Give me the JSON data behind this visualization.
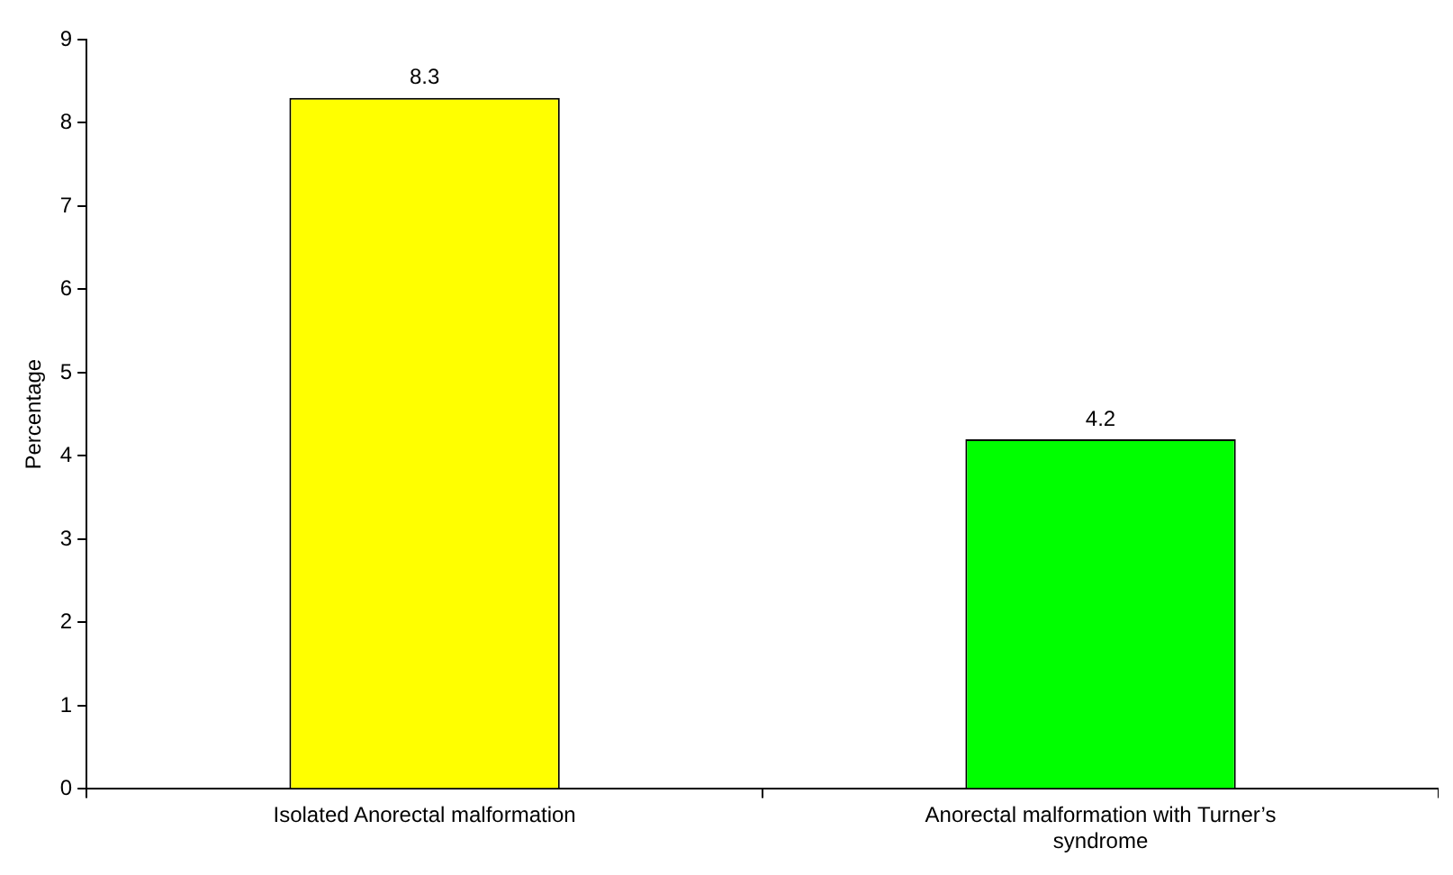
{
  "chart_data": {
    "type": "bar",
    "ylabel": "Percentage",
    "categories": [
      "Isolated Anorectal malformation",
      "Anorectal malformation with Turner’s syndrome"
    ],
    "values": [
      8.3,
      4.2
    ],
    "colors": [
      "#ffff00",
      "#00ff00"
    ],
    "ylim": [
      0,
      9
    ],
    "yticks": [
      0,
      1,
      2,
      3,
      4,
      5,
      6,
      7,
      8,
      9
    ],
    "grid": false,
    "legend": false,
    "data_labels": true
  }
}
